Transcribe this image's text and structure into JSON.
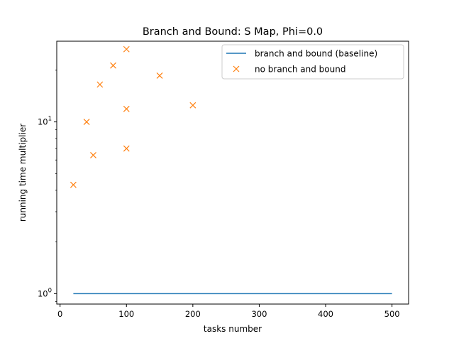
{
  "chart_data": {
    "type": "line",
    "title": "Branch and Bound: S Map, Phi=0.0",
    "xlabel": "tasks number",
    "ylabel": "running time multiplier",
    "xlim": [
      -5,
      525
    ],
    "ylim": [
      0.87,
      29.5
    ],
    "yscale": "log",
    "grid": false,
    "legend_position": "upper right",
    "x_ticks": [
      {
        "value": 0,
        "label": "0"
      },
      {
        "value": 100,
        "label": "100"
      },
      {
        "value": 200,
        "label": "200"
      },
      {
        "value": 300,
        "label": "300"
      },
      {
        "value": 400,
        "label": "400"
      },
      {
        "value": 500,
        "label": "500"
      }
    ],
    "y_ticks": [
      {
        "value": 1,
        "base": "10",
        "exp": "0"
      },
      {
        "value": 10,
        "base": "10",
        "exp": "1"
      }
    ],
    "series": [
      {
        "name": "branch and bound (baseline)",
        "kind": "line",
        "color": "#1f77b4",
        "x": [
          20,
          40,
          50,
          60,
          80,
          100,
          150,
          200,
          300,
          400,
          500
        ],
        "y": [
          1,
          1,
          1,
          1,
          1,
          1,
          1,
          1,
          1,
          1,
          1
        ]
      },
      {
        "name": "no branch and bound",
        "kind": "scatter",
        "marker": "x",
        "color": "#ff7f0e",
        "points": [
          {
            "x": 20,
            "y": 4.3
          },
          {
            "x": 40,
            "y": 10.0
          },
          {
            "x": 50,
            "y": 6.4
          },
          {
            "x": 60,
            "y": 16.5
          },
          {
            "x": 80,
            "y": 21.3
          },
          {
            "x": 100,
            "y": 7.0
          },
          {
            "x": 100,
            "y": 11.9
          },
          {
            "x": 100,
            "y": 26.5
          },
          {
            "x": 150,
            "y": 18.6
          },
          {
            "x": 200,
            "y": 12.5
          }
        ]
      }
    ]
  }
}
